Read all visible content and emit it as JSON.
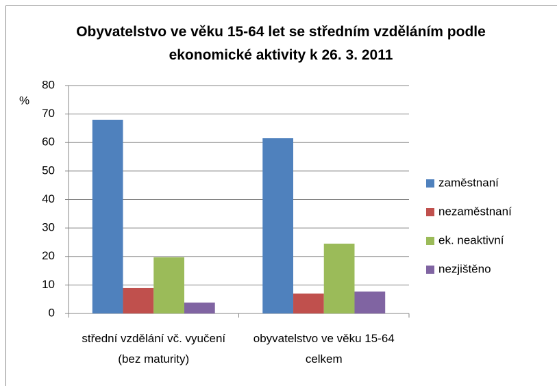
{
  "chart_data": {
    "type": "bar",
    "title": "Obyvatelstvo ve věku 15-64 let se středním vzděláním podle ekonomické aktivity k 26. 3. 2011",
    "ylabel": "%",
    "categories": [
      "střední vzdělání vč. vyučení (bez maturity)",
      "obyvatelstvo ve věku 15-64 celkem"
    ],
    "series": [
      {
        "name": "zaměstnaní",
        "color": "#4f81bd",
        "values": [
          68,
          61.5
        ]
      },
      {
        "name": "nezaměstnaní",
        "color": "#c0504d",
        "values": [
          8.9,
          7
        ]
      },
      {
        "name": "ek. neaktivní",
        "color": "#9bbb59",
        "values": [
          19.7,
          24.5
        ]
      },
      {
        "name": "nezjištěno",
        "color": "#8064a2",
        "values": [
          3.8,
          7.7
        ]
      }
    ],
    "ylim": [
      0,
      80
    ],
    "yticks": [
      0,
      10,
      20,
      30,
      40,
      50,
      60,
      70,
      80
    ],
    "grid": true,
    "legend": "right"
  }
}
